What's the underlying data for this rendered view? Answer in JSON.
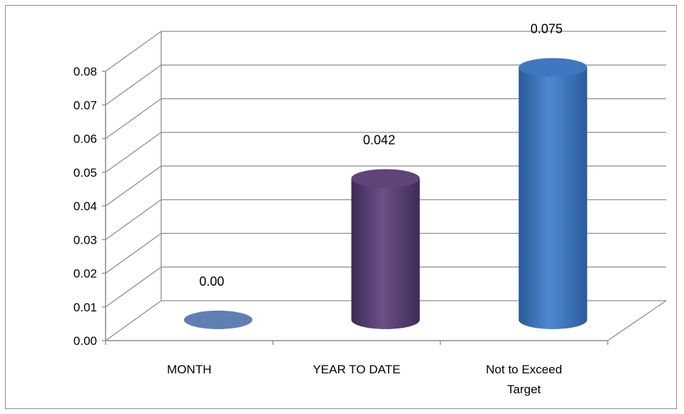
{
  "chart_data": {
    "type": "bar",
    "style": "3d-cylinder",
    "categories": [
      "MONTH",
      "YEAR TO DATE",
      "Not to Exceed Target"
    ],
    "category_lines": [
      [
        "MONTH"
      ],
      [
        "YEAR TO DATE"
      ],
      [
        "Not to Exceed",
        "Target"
      ]
    ],
    "values": [
      0.0,
      0.042,
      0.075
    ],
    "data_labels": [
      "0.00",
      "0.042",
      "0.075"
    ],
    "colors": [
      "#5f7fb4",
      "#5e4478",
      "#3f78c0"
    ],
    "ylim": [
      0,
      0.08
    ],
    "yticks": [
      "0.00",
      "0.01",
      "0.02",
      "0.03",
      "0.04",
      "0.05",
      "0.06",
      "0.07",
      "0.08"
    ],
    "grid": true,
    "legend": "none"
  }
}
